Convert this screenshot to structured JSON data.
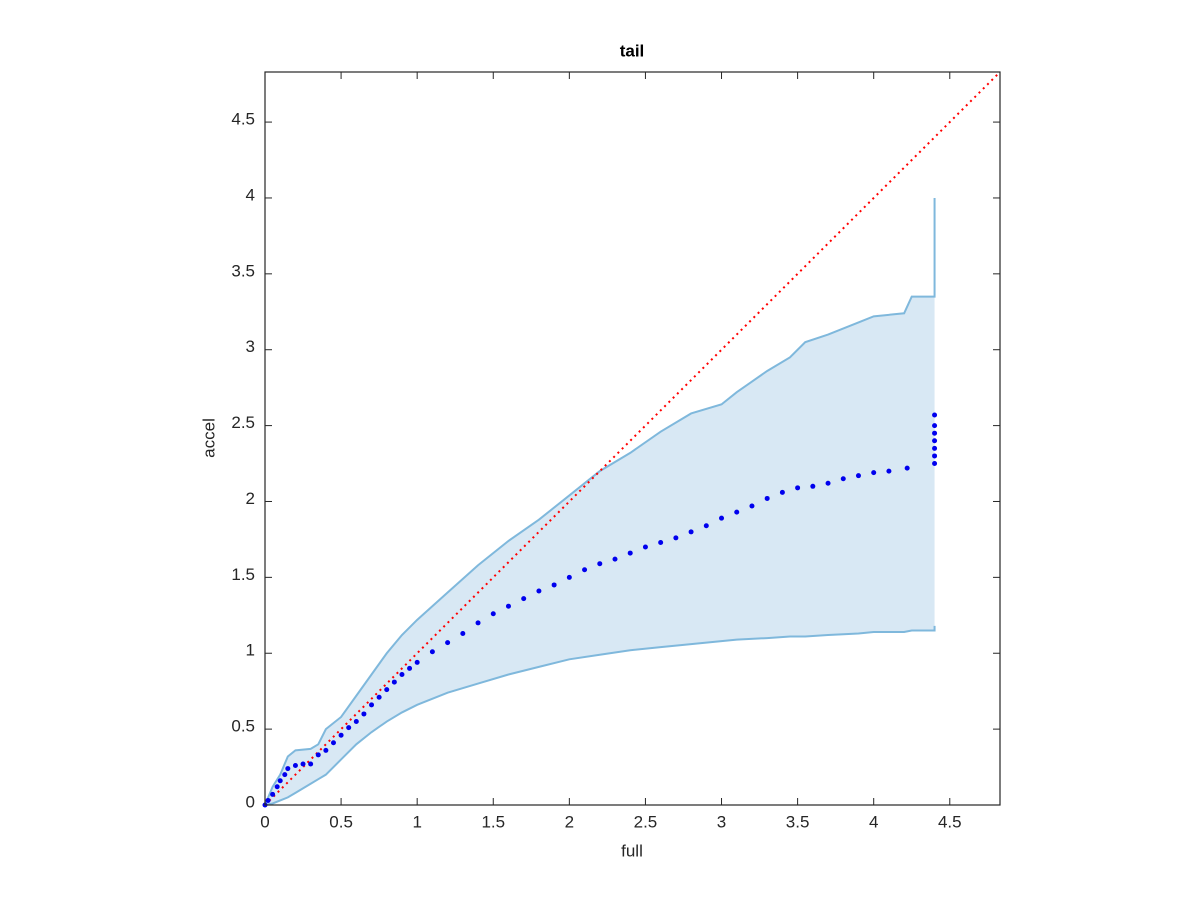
{
  "chart_data": {
    "type": "scatter",
    "title": "tail",
    "x_label": "full",
    "y_label": "accel",
    "xlim": [
      0,
      4.83
    ],
    "ylim": [
      0,
      4.83
    ],
    "xticks": [
      0,
      0.5,
      1,
      1.5,
      2,
      2.5,
      3,
      3.5,
      4,
      4.5
    ],
    "yticks": [
      0,
      0.5,
      1,
      1.5,
      2,
      2.5,
      3,
      3.5,
      4,
      4.5
    ],
    "series": [
      {
        "type": "area",
        "color": "#7fb8dc",
        "fill": "#d8e8f4",
        "x": [
          0,
          0.05,
          0.1,
          0.15,
          0.2,
          0.3,
          0.35,
          0.4,
          0.5,
          0.6,
          0.7,
          0.8,
          0.9,
          1.0,
          1.2,
          1.4,
          1.6,
          1.8,
          2.0,
          2.2,
          2.4,
          2.6,
          2.8,
          3.0,
          3.1,
          3.3,
          3.45,
          3.55,
          3.7,
          3.9,
          4.0,
          4.2,
          4.25,
          4.4,
          4.4
        ],
        "lower": [
          0,
          0.01,
          0.03,
          0.05,
          0.08,
          0.14,
          0.17,
          0.2,
          0.3,
          0.4,
          0.48,
          0.55,
          0.61,
          0.66,
          0.74,
          0.8,
          0.86,
          0.91,
          0.96,
          0.99,
          1.02,
          1.04,
          1.06,
          1.08,
          1.09,
          1.1,
          1.11,
          1.11,
          1.12,
          1.13,
          1.14,
          1.14,
          1.15,
          1.15,
          1.18
        ],
        "upper": [
          0,
          0.12,
          0.2,
          0.32,
          0.36,
          0.37,
          0.4,
          0.5,
          0.58,
          0.72,
          0.86,
          1.0,
          1.12,
          1.22,
          1.4,
          1.58,
          1.74,
          1.88,
          2.04,
          2.2,
          2.32,
          2.46,
          2.58,
          2.64,
          2.72,
          2.86,
          2.95,
          3.05,
          3.1,
          3.18,
          3.22,
          3.24,
          3.35,
          3.35,
          4.0
        ]
      },
      {
        "type": "line",
        "color": "#ff0000",
        "dashed": true,
        "x": [
          0,
          4.83
        ],
        "values": [
          0,
          4.83
        ]
      },
      {
        "type": "scatter",
        "color": "#0000ee",
        "x": [
          0,
          0.02,
          0.05,
          0.08,
          0.1,
          0.13,
          0.15,
          0.2,
          0.25,
          0.3,
          0.35,
          0.4,
          0.45,
          0.5,
          0.55,
          0.6,
          0.65,
          0.7,
          0.75,
          0.8,
          0.85,
          0.9,
          0.95,
          1.0,
          1.1,
          1.2,
          1.3,
          1.4,
          1.5,
          1.6,
          1.7,
          1.8,
          1.9,
          2.0,
          2.1,
          2.2,
          2.3,
          2.4,
          2.5,
          2.6,
          2.7,
          2.8,
          2.9,
          3.0,
          3.1,
          3.2,
          3.3,
          3.4,
          3.5,
          3.6,
          3.7,
          3.8,
          3.9,
          4.0,
          4.1,
          4.22,
          4.4,
          4.4,
          4.4,
          4.4,
          4.4,
          4.4,
          4.4
        ],
        "values": [
          0,
          0.03,
          0.07,
          0.12,
          0.16,
          0.2,
          0.24,
          0.26,
          0.27,
          0.27,
          0.33,
          0.36,
          0.41,
          0.46,
          0.51,
          0.55,
          0.6,
          0.66,
          0.71,
          0.76,
          0.81,
          0.86,
          0.9,
          0.94,
          1.01,
          1.07,
          1.13,
          1.2,
          1.26,
          1.31,
          1.36,
          1.41,
          1.45,
          1.5,
          1.55,
          1.59,
          1.62,
          1.66,
          1.7,
          1.73,
          1.76,
          1.8,
          1.84,
          1.89,
          1.93,
          1.97,
          2.02,
          2.06,
          2.09,
          2.1,
          2.12,
          2.15,
          2.17,
          2.19,
          2.2,
          2.22,
          2.25,
          2.3,
          2.35,
          2.4,
          2.45,
          2.5,
          2.57
        ]
      }
    ]
  }
}
